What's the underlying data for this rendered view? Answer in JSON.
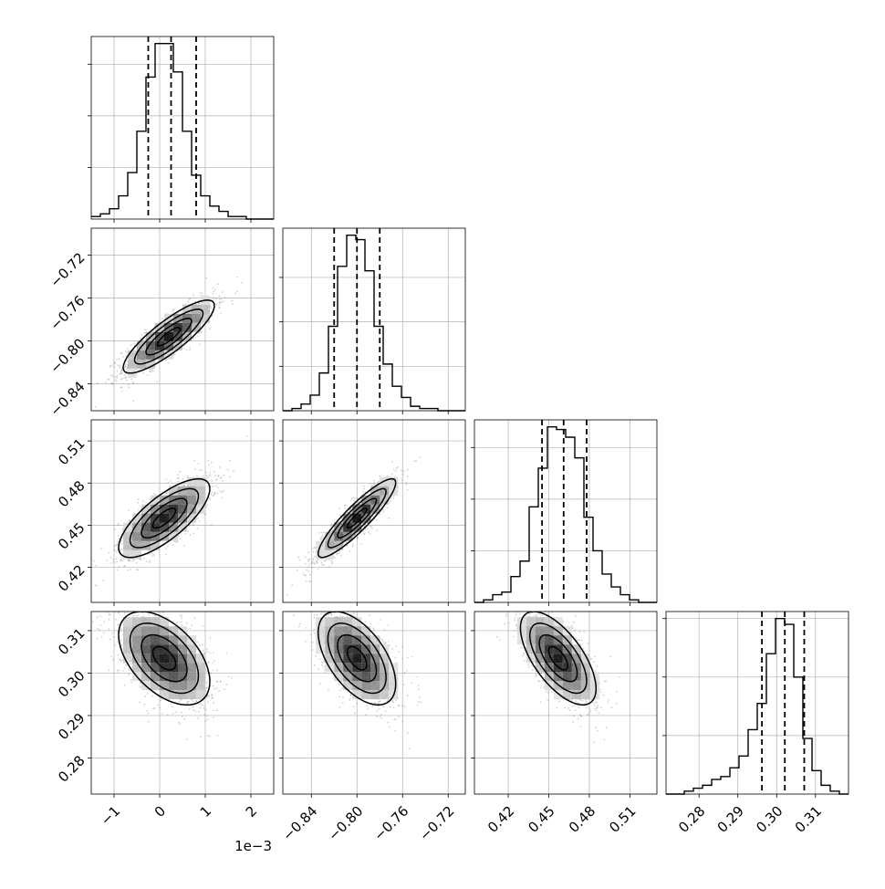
{
  "chart_data": [
    {
      "type": "histogram",
      "panel": "p1-p1",
      "xlim": [
        -0.0015,
        0.0025
      ],
      "bins_range": [
        -0.0015,
        0.0025
      ],
      "counts": [
        1,
        2,
        4,
        9,
        18,
        34,
        55,
        68,
        68,
        57,
        34,
        17,
        9,
        5,
        3,
        1,
        1,
        0,
        0,
        0
      ],
      "quantiles": [
        -0.00025,
        0.00025,
        0.0008
      ],
      "ygrid_counts": [
        20,
        40,
        60
      ]
    },
    {
      "type": "scatter+contour",
      "panel": "p2-vs-p1",
      "xlim": [
        -0.0015,
        0.0025
      ],
      "ylim": [
        -0.865,
        -0.695
      ],
      "peak": [
        0.0002,
        -0.796
      ],
      "sigma_x": 0.0005,
      "sigma_y": 0.017,
      "rho": 0.85,
      "ticks_y": [
        "−0.84",
        "−0.80",
        "−0.76",
        "−0.72"
      ],
      "tick_values_y": [
        -0.84,
        -0.8,
        -0.76,
        -0.72
      ]
    },
    {
      "type": "histogram",
      "panel": "p2-p2",
      "xlim": [
        -0.865,
        -0.705
      ],
      "bins_range": [
        -0.865,
        -0.705
      ],
      "counts": [
        0,
        1,
        3,
        7,
        17,
        38,
        65,
        79,
        77,
        63,
        38,
        21,
        11,
        6,
        2,
        1,
        1,
        0,
        0,
        0
      ],
      "quantiles": [
        -0.82,
        -0.8,
        -0.78
      ],
      "ygrid_counts": [
        20,
        40,
        60
      ]
    },
    {
      "type": "scatter+contour",
      "panel": "p3-vs-p1",
      "xlim": [
        -0.0015,
        0.0025
      ],
      "ylim": [
        0.395,
        0.525
      ],
      "peak": [
        0.0001,
        0.455
      ],
      "sigma_x": 0.0005,
      "sigma_y": 0.014,
      "rho": 0.75,
      "ticks_y": [
        "0.42",
        "0.45",
        "0.48",
        "0.51"
      ],
      "tick_values_y": [
        0.42,
        0.45,
        0.48,
        0.51
      ]
    },
    {
      "type": "scatter+contour",
      "panel": "p3-vs-p2",
      "xlim": [
        -0.865,
        -0.705
      ],
      "ylim": [
        0.395,
        0.525
      ],
      "peak": [
        -0.8,
        0.455
      ],
      "sigma_x": 0.017,
      "sigma_y": 0.014,
      "rho": 0.9,
      "ticks_y": [],
      "tick_values_y": []
    },
    {
      "type": "histogram",
      "panel": "p3-p3",
      "xlim": [
        0.395,
        0.53
      ],
      "bins_range": [
        0.395,
        0.53
      ],
      "counts": [
        0,
        1,
        3,
        4,
        10,
        16,
        37,
        52,
        68,
        67,
        64,
        56,
        33,
        20,
        11,
        6,
        3,
        1,
        0,
        0
      ],
      "quantiles": [
        0.445,
        0.461,
        0.478
      ],
      "ygrid_counts": [
        20,
        40,
        60
      ]
    },
    {
      "type": "scatter+contour",
      "panel": "p4-vs-p1",
      "xlim": [
        -0.0015,
        0.0025
      ],
      "ylim": [
        0.2715,
        0.3145
      ],
      "peak": [
        0.0001,
        0.3035
      ],
      "sigma_x": 0.0005,
      "sigma_y": 0.0055,
      "rho": -0.5,
      "ticks_y": [
        "0.28",
        "0.29",
        "0.30",
        "0.31"
      ],
      "tick_values_y": [
        0.28,
        0.29,
        0.3,
        0.31
      ]
    },
    {
      "type": "scatter+contour",
      "panel": "p4-vs-p2",
      "xlim": [
        -0.865,
        -0.705
      ],
      "ylim": [
        0.2715,
        0.3145
      ],
      "peak": [
        -0.8,
        0.3035
      ],
      "sigma_x": 0.017,
      "sigma_y": 0.0055,
      "rho": -0.55,
      "ticks_y": [],
      "tick_values_y": []
    },
    {
      "type": "scatter+contour",
      "panel": "p4-vs-p3",
      "xlim": [
        0.395,
        0.53
      ],
      "ylim": [
        0.2715,
        0.3145
      ],
      "peak": [
        0.457,
        0.3035
      ],
      "sigma_x": 0.014,
      "sigma_y": 0.0055,
      "rho": -0.65,
      "ticks_y": [],
      "tick_values_y": []
    },
    {
      "type": "histogram",
      "panel": "p4-p4",
      "xlim": [
        0.2715,
        0.3185
      ],
      "bins_range": [
        0.2715,
        0.3185
      ],
      "counts": [
        0,
        0,
        1,
        2,
        3,
        5,
        6,
        9,
        13,
        22,
        31,
        48,
        60,
        58,
        40,
        19,
        8,
        3,
        1,
        0
      ],
      "quantiles": [
        0.2962,
        0.3021,
        0.3071
      ],
      "ygrid_counts": [
        20,
        40,
        60
      ]
    }
  ],
  "x_axes": [
    {
      "ticks": [
        "−1",
        "0",
        "1",
        "2"
      ],
      "tick_values": [
        -0.001,
        0,
        0.001,
        0.002
      ],
      "offset_label": "1e−3"
    },
    {
      "ticks": [
        "−0.84",
        "−0.80",
        "−0.76",
        "−0.72"
      ],
      "tick_values": [
        -0.84,
        -0.8,
        -0.76,
        -0.72
      ]
    },
    {
      "ticks": [
        "0.42",
        "0.45",
        "0.48",
        "0.51"
      ],
      "tick_values": [
        0.42,
        0.45,
        0.48,
        0.51
      ]
    },
    {
      "ticks": [
        "0.28",
        "0.29",
        "0.30",
        "0.31"
      ],
      "tick_values": [
        0.28,
        0.29,
        0.3,
        0.31
      ]
    }
  ],
  "colors": {
    "axes": "#000000",
    "grid": "#b0b0b0",
    "points": "#7f7f7f",
    "contour": "#000000",
    "density_max": "#000000",
    "density_min": "#ffffff"
  },
  "grid": true
}
